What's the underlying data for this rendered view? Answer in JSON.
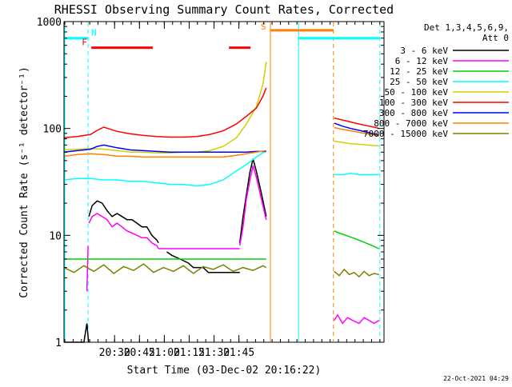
{
  "chart_data": {
    "type": "line",
    "title": "RHESSI Observing Summary Count Rates, Corrected",
    "xlabel": "Start Time (03-Dec-02 20:16:22)",
    "ylabel": "Corrected Count Rate (s⁻¹ detector⁻¹)",
    "yscale": "log",
    "ylim": [
      1,
      1000
    ],
    "xlim_minutes": [
      20.27,
      22.2
    ],
    "y_tick_labels": [
      "1",
      "10",
      "100",
      "1000"
    ],
    "x_ticks": [
      {
        "t": 30.5,
        "label": "20:30"
      },
      {
        "t": 45.5,
        "label": "20:45"
      },
      {
        "t": 60.5,
        "label": "21:00"
      },
      {
        "t": 75.5,
        "label": "21:15"
      },
      {
        "t": 90.5,
        "label": "21:30"
      },
      {
        "t": 105.5,
        "label": "21:45"
      }
    ],
    "legend_header": [
      "Det 1,3,4,5,6,9,",
      "Att 0"
    ],
    "timestamp": "22-Oct-2021 04:29",
    "series": [
      {
        "name": "3 - 6 keV",
        "color": "#000000",
        "segments": [
          {
            "x": [
              0,
              12,
              13.8,
              14.8
            ],
            "y": [
              1,
              1,
              1.5,
              1
            ]
          },
          {
            "x": [
              15,
              17,
              20,
              23,
              26,
              29,
              32,
              35,
              38,
              41,
              44,
              47,
              50,
              53,
              56,
              57
            ],
            "y": [
              15,
              19,
              21,
              20,
              17,
              15,
              16,
              15,
              14,
              14,
              13,
              12,
              12,
              10,
              9,
              8.5
            ]
          },
          {
            "x": [
              62,
              65,
              70,
              75,
              78,
              81,
              84,
              87,
              90,
              93,
              96,
              99,
              102,
              105,
              106
            ],
            "y": [
              7,
              6.5,
              6,
              5.5,
              5,
              5,
              5,
              4.5,
              4.5,
              4.5,
              4.5,
              4.5,
              4.5,
              4.5,
              4.5
            ]
          },
          {
            "x": [
              106,
              108,
              110,
              112,
              114,
              116,
              119,
              122
            ],
            "y": [
              8.5,
              15,
              24,
              38,
              52,
              40,
              25,
              15
            ]
          }
        ]
      },
      {
        "name": "6 - 12 keV",
        "color": "#ff00ff",
        "segments": [
          {
            "x": [
              13.8,
              14.5
            ],
            "y": [
              3,
              8
            ]
          },
          {
            "x": [
              15,
              17,
              20,
              23,
              26,
              29,
              32,
              35,
              38,
              41,
              44,
              47,
              50,
              53,
              56,
              57
            ],
            "y": [
              13,
              15,
              16,
              15,
              14,
              12,
              13,
              12,
              11,
              10.5,
              10,
              9.5,
              9.5,
              8.5,
              8,
              7.5
            ]
          },
          {
            "x": [
              57,
              62,
              65,
              70,
              75,
              80,
              85,
              90,
              95,
              100,
              105,
              106
            ],
            "y": [
              7.5,
              7.5,
              7.5,
              7.5,
              7.5,
              7.5,
              7.5,
              7.5,
              7.5,
              7.5,
              7.5,
              7.5
            ]
          },
          {
            "x": [
              106,
              108,
              110,
              112,
              114,
              116,
              119,
              122
            ],
            "y": [
              8,
              12,
              22,
              32,
              45,
              35,
              22,
              14
            ]
          },
          {
            "x": [
              163,
              165,
              168,
              171,
              174,
              178,
              181,
              184,
              187,
              190
            ],
            "y": [
              1.6,
              1.8,
              1.5,
              1.7,
              1.6,
              1.5,
              1.7,
              1.6,
              1.5,
              1.6
            ]
          }
        ]
      },
      {
        "name": "12 - 25 keV",
        "color": "#00d000",
        "segments": [
          {
            "x": [
              0,
              10,
              20,
              30,
              40,
              50,
              60,
              70,
              80,
              90,
              100,
              110,
              118,
              122
            ],
            "y": [
              6,
              6,
              6,
              6,
              6,
              6,
              6,
              6,
              6,
              6,
              6,
              6,
              6,
              6
            ]
          },
          {
            "x": [
              163,
              166,
              170,
              174,
              178,
              182,
              186,
              190
            ],
            "y": [
              11,
              10.5,
              10,
              9.5,
              9,
              8.5,
              8,
              7.5
            ]
          }
        ]
      },
      {
        "name": "25 - 50 keV",
        "color": "#00ffff",
        "segments": [
          {
            "x": [
              0,
              8,
              16,
              24,
              32,
              40,
              48,
              56,
              64,
              72,
              80,
              88,
              96,
              104,
              110,
              116,
              122
            ],
            "y": [
              33,
              34,
              34,
              33,
              33,
              32,
              32,
              31,
              30,
              30,
              29,
              30,
              33,
              40,
              46,
              54,
              62
            ]
          },
          {
            "x": [
              163,
              168,
              173,
              178,
              183,
              188,
              190
            ],
            "y": [
              37,
              37,
              38,
              37,
              37,
              37,
              37
            ]
          }
        ]
      },
      {
        "name": "50 - 100 keV",
        "color": "#d0d000",
        "segments": [
          {
            "x": [
              0,
              8,
              16,
              24,
              32,
              40,
              48,
              56,
              64,
              72,
              80,
              88,
              96,
              104,
              110,
              116,
              120,
              122
            ],
            "y": [
              63,
              64,
              65,
              64,
              62,
              60,
              60,
              59,
              59,
              60,
              60,
              62,
              68,
              82,
              110,
              160,
              260,
              420
            ]
          },
          {
            "x": [
              163,
              168,
              173,
              178,
              183,
              188,
              190
            ],
            "y": [
              76,
              74,
              72,
              71,
              70,
              69,
              69
            ]
          }
        ]
      },
      {
        "name": "100 - 300 keV",
        "color": "#ff0000",
        "segments": [
          {
            "x": [
              0,
              8,
              16,
              20,
              24,
              32,
              40,
              48,
              56,
              64,
              72,
              80,
              88,
              96,
              104,
              110,
              116,
              120,
              122
            ],
            "y": [
              82,
              84,
              88,
              96,
              103,
              94,
              89,
              86,
              84,
              83,
              83,
              84,
              88,
              95,
              110,
              130,
              155,
              200,
              240
            ]
          },
          {
            "x": [
              163,
              168,
              173,
              178,
              183,
              188,
              190
            ],
            "y": [
              125,
              120,
              115,
              110,
              106,
              102,
              100
            ]
          }
        ]
      },
      {
        "name": "300 - 800 keV",
        "color": "#0000ff",
        "segments": [
          {
            "x": [
              0,
              8,
              16,
              20,
              24,
              32,
              40,
              48,
              56,
              64,
              72,
              80,
              88,
              96,
              104,
              110,
              116,
              120,
              122
            ],
            "y": [
              60,
              62,
              64,
              68,
              70,
              66,
              63,
              62,
              61,
              60,
              60,
              60,
              60,
              60,
              60,
              60,
              61,
              61,
              61
            ]
          },
          {
            "x": [
              163,
              168,
              173,
              178,
              183,
              188,
              190
            ],
            "y": [
              112,
              105,
              100,
              96,
              92,
              88,
              86
            ]
          }
        ]
      },
      {
        "name": "800 - 7000 keV",
        "color": "#ff8000",
        "segments": [
          {
            "x": [
              0,
              8,
              16,
              24,
              32,
              40,
              48,
              56,
              64,
              72,
              80,
              88,
              96,
              104,
              110,
              116,
              122
            ],
            "y": [
              55,
              57,
              58,
              57,
              55,
              55,
              54,
              54,
              54,
              54,
              54,
              54,
              54,
              56,
              58,
              60,
              62
            ]
          },
          {
            "x": [
              163,
              168,
              173,
              178,
              183,
              188,
              190
            ],
            "y": [
              102,
              98,
              95,
              92,
              89,
              86,
              85
            ]
          }
        ]
      },
      {
        "name": "7000 - 15000 keV",
        "color": "#808000",
        "segments": [
          {
            "x": [
              0,
              6,
              12,
              18,
              24,
              30,
              36,
              42,
              48,
              54,
              60,
              66,
              72,
              78,
              84,
              90,
              96,
              102,
              108,
              114,
              120,
              122
            ],
            "y": [
              5,
              4.5,
              5.2,
              4.6,
              5.3,
              4.4,
              5.1,
              4.7,
              5.4,
              4.5,
              5,
              4.6,
              5.2,
              4.4,
              5.1,
              4.8,
              5.3,
              4.6,
              5,
              4.7,
              5.2,
              5
            ]
          },
          {
            "x": [
              163,
              166,
              169,
              172,
              175,
              178,
              181,
              184,
              187,
              190
            ],
            "y": [
              4.6,
              4.2,
              4.8,
              4.3,
              4.5,
              4.1,
              4.6,
              4.2,
              4.4,
              4.3
            ]
          }
        ]
      }
    ],
    "annotations": {
      "eclipse": [
        {
          "label": "N",
          "x0": 14.5,
          "x1": 190.5,
          "level": 700,
          "color": "#00ffff"
        }
      ],
      "flare": [
        {
          "label": "F",
          "x0": 16.5,
          "x1": 53.5,
          "level": 570,
          "color": "#ff0000"
        },
        {
          "x0": 99.5,
          "x1": 112.5,
          "level": 570,
          "color": "#ff0000"
        }
      ],
      "saa": [
        {
          "label": "S",
          "x0": 124.5,
          "x1": 162.5,
          "level": 830,
          "color": "#ff8000"
        }
      ],
      "vertical_markers": [
        {
          "t": 0.5,
          "color": "#00ffff",
          "style": "solid"
        },
        {
          "t": 14.5,
          "color": "#00ffff",
          "style": "dashed"
        },
        {
          "t": 124.5,
          "color": "#ff8000",
          "style": "solid"
        },
        {
          "t": 141.5,
          "color": "#00ffff",
          "style": "solid"
        },
        {
          "t": 162.5,
          "color": "#ff8000",
          "style": "dashed"
        },
        {
          "t": 190.5,
          "color": "#00ffff",
          "style": "dashed"
        }
      ]
    }
  }
}
